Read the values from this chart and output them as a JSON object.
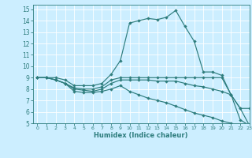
{
  "xlabel": "Humidex (Indice chaleur)",
  "bg_color": "#cceeff",
  "line_color": "#2e7d7d",
  "grid_color": "#ffffff",
  "xlim": [
    -0.5,
    23
  ],
  "ylim": [
    5,
    15.4
  ],
  "xticks": [
    0,
    1,
    2,
    3,
    4,
    5,
    6,
    7,
    8,
    9,
    10,
    11,
    12,
    13,
    14,
    15,
    16,
    17,
    18,
    19,
    20,
    21,
    22,
    23
  ],
  "yticks": [
    5,
    6,
    7,
    8,
    9,
    10,
    11,
    12,
    13,
    14,
    15
  ],
  "line1_x": [
    0,
    1,
    2,
    3,
    4,
    5,
    6,
    7,
    8,
    9,
    10,
    11,
    12,
    13,
    14,
    15,
    16,
    17,
    18,
    19,
    20,
    21,
    22,
    23
  ],
  "line1_y": [
    9,
    9,
    9,
    8.8,
    8.3,
    8.3,
    8.3,
    8.5,
    9.3,
    10.5,
    13.8,
    14.0,
    14.2,
    14.1,
    14.3,
    14.9,
    13.5,
    12.2,
    9.5,
    9.5,
    9.2,
    7.5,
    6.3,
    6.3
  ],
  "line2_x": [
    0,
    1,
    2,
    3,
    4,
    5,
    6,
    7,
    8,
    9,
    10,
    11,
    12,
    13,
    14,
    15,
    16,
    17,
    18,
    19,
    20,
    21,
    22,
    23
  ],
  "line2_y": [
    9,
    9,
    8.8,
    8.5,
    8.1,
    8.0,
    8.0,
    8.2,
    8.8,
    9.0,
    9.0,
    9.0,
    9.0,
    9.0,
    9.0,
    9.0,
    9.0,
    9.0,
    9.0,
    9.0,
    9.0,
    7.5,
    6.3,
    4.8
  ],
  "line3_x": [
    0,
    1,
    2,
    3,
    4,
    5,
    6,
    7,
    8,
    9,
    10,
    11,
    12,
    13,
    14,
    15,
    16,
    17,
    18,
    19,
    20,
    21,
    22,
    23
  ],
  "line3_y": [
    9,
    9,
    8.8,
    8.5,
    8.0,
    7.9,
    7.8,
    8.0,
    8.5,
    8.8,
    8.8,
    8.8,
    8.8,
    8.7,
    8.7,
    8.7,
    8.5,
    8.3,
    8.2,
    8.0,
    7.8,
    7.5,
    5.3,
    4.8
  ],
  "line4_x": [
    0,
    1,
    2,
    3,
    4,
    5,
    6,
    7,
    8,
    9,
    10,
    11,
    12,
    13,
    14,
    15,
    16,
    17,
    18,
    19,
    20,
    21,
    22,
    23
  ],
  "line4_y": [
    9,
    9,
    8.8,
    8.5,
    7.8,
    7.7,
    7.7,
    7.8,
    8.0,
    8.3,
    7.8,
    7.5,
    7.2,
    7.0,
    6.8,
    6.5,
    6.2,
    5.9,
    5.7,
    5.5,
    5.2,
    5.0,
    4.85,
    4.7
  ]
}
